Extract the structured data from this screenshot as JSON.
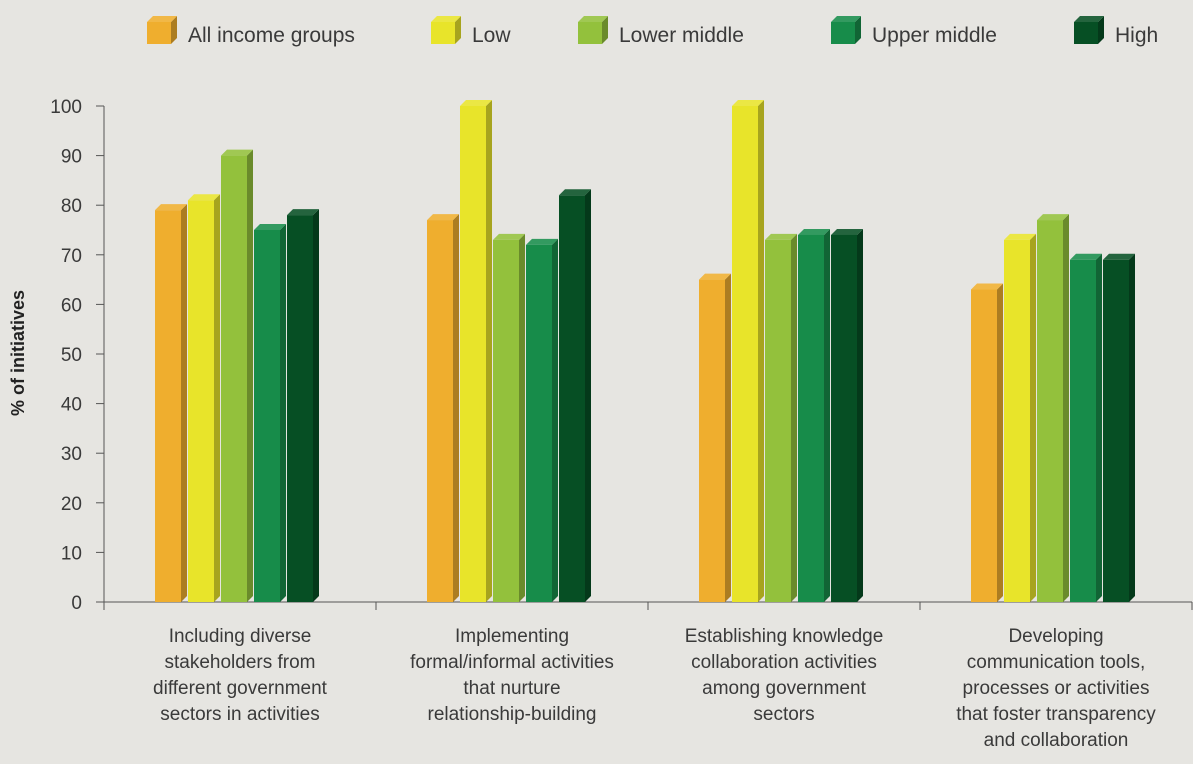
{
  "chart_data": {
    "type": "bar",
    "title": "",
    "xlabel": "",
    "ylabel": "% of initiatives",
    "ylim": [
      0,
      100
    ],
    "yticks": [
      0,
      10,
      20,
      30,
      40,
      50,
      60,
      70,
      80,
      90,
      100
    ],
    "grid": false,
    "legend_position": "top",
    "categories": [
      [
        "Including diverse",
        "stakeholders from",
        "different government",
        "sectors in activities"
      ],
      [
        "Implementing",
        "formal/informal activities",
        "that nurture",
        "relationship-building"
      ],
      [
        "Establishing knowledge",
        "collaboration activities",
        "among government",
        "sectors"
      ],
      [
        "Developing",
        "communication tools,",
        "processes or activities",
        "that foster transparency",
        "and collaboration"
      ]
    ],
    "series": [
      {
        "name": "All income groups",
        "color": "#efae2e",
        "values": [
          79,
          77,
          65,
          63
        ]
      },
      {
        "name": "Low",
        "color": "#e8e42a",
        "values": [
          81,
          100,
          100,
          73
        ]
      },
      {
        "name": "Lower middle",
        "color": "#93c13c",
        "values": [
          90,
          73,
          73,
          77
        ]
      },
      {
        "name": "Upper middle",
        "color": "#178c4a",
        "values": [
          75,
          72,
          74,
          69
        ]
      },
      {
        "name": "High",
        "color": "#064f24",
        "values": [
          78,
          82,
          74,
          69
        ]
      }
    ]
  }
}
